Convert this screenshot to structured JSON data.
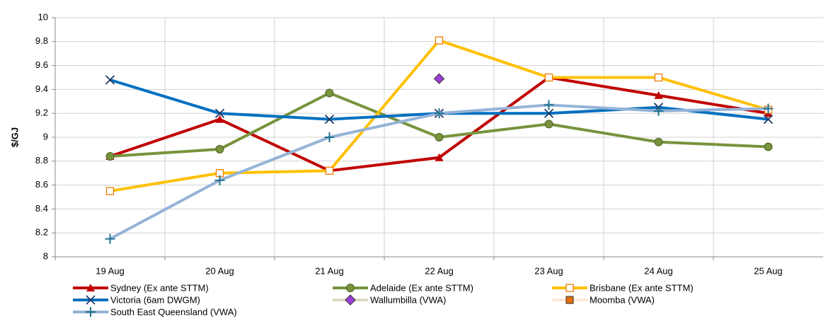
{
  "chart_data": {
    "type": "line",
    "y_label": "$/GJ",
    "categories": [
      "19 Aug",
      "20 Aug",
      "21 Aug",
      "22 Aug",
      "23 Aug",
      "24 Aug",
      "25 Aug"
    ],
    "ylim": [
      8,
      10
    ],
    "yticks": [
      8,
      8.2,
      8.4,
      8.6,
      8.8,
      9,
      9.2,
      9.4,
      9.6,
      9.8,
      10
    ],
    "grid": true,
    "series": [
      {
        "name": "Sydney (Ex ante STTM)",
        "color": "#c00000",
        "marker": "triangle",
        "marker_fill": "#c00000",
        "values": [
          8.84,
          9.15,
          8.72,
          8.83,
          9.5,
          9.35,
          9.2
        ]
      },
      {
        "name": "Adelaide (Ex ante STTM)",
        "color": "#77933c",
        "marker": "circle",
        "marker_fill": "#77933c",
        "values": [
          8.84,
          8.9,
          9.37,
          9.0,
          9.11,
          8.96,
          8.92
        ]
      },
      {
        "name": "Brisbane (Ex ante STTM)",
        "color": "#ffc000",
        "marker": "square-open",
        "marker_fill": "#f07c00",
        "values": [
          8.55,
          8.7,
          8.72,
          9.81,
          9.5,
          9.5,
          9.23
        ]
      },
      {
        "name": "Victoria (6am DWGM)",
        "color": "#0070c0",
        "marker": "x",
        "marker_fill": "#1f3864",
        "values": [
          9.48,
          9.2,
          9.15,
          9.2,
          9.2,
          9.25,
          9.15
        ]
      },
      {
        "name": "Wallumbilla (VWA)",
        "color": "#ddd9c3",
        "marker": "diamond",
        "marker_fill": "#9b3fd6",
        "values": [
          null,
          null,
          null,
          9.49,
          null,
          null,
          null
        ]
      },
      {
        "name": "Moomba (VWA)",
        "color": "#fde9d9",
        "marker": "square",
        "marker_fill": "#e46c0a",
        "values": [
          null,
          null,
          null,
          null,
          null,
          null,
          null
        ]
      },
      {
        "name": "South East Queensland (VWA)",
        "color": "#95b3d7",
        "marker": "plus",
        "marker_fill": "#1f7391",
        "values": [
          8.15,
          8.64,
          9.0,
          9.2,
          9.27,
          9.22,
          9.24
        ]
      }
    ]
  }
}
